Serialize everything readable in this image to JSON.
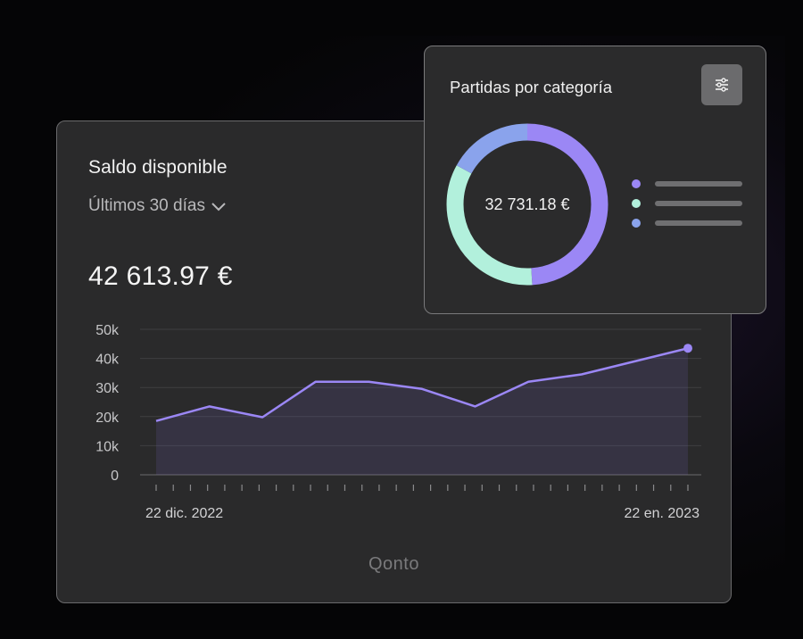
{
  "balance_card": {
    "title": "Saldo disponible",
    "period_label": "Últimos 30 días",
    "amount": "42 613.97 €",
    "brand": "Qonto"
  },
  "category_card": {
    "title": "Partidas por categoría",
    "total": "32 731.18 €",
    "filter_icon": "sliders-icon"
  },
  "colors": {
    "line": "#9b87f5",
    "segment_purple": "#9b87f5",
    "segment_mint": "#b2f0dc",
    "segment_blue": "#8aa3ec"
  },
  "chart_data": [
    {
      "type": "area",
      "y_ticks": [
        "50k",
        "40k",
        "30k",
        "20k",
        "10k",
        "0"
      ],
      "x_labels": [
        "22 dic. 2022",
        "22 en. 2023"
      ],
      "ylim": [
        0,
        50000
      ],
      "x": [
        0,
        1,
        2,
        3,
        4,
        5,
        6,
        7,
        8,
        9,
        10
      ],
      "values": [
        18500,
        23500,
        19800,
        32000,
        32000,
        29500,
        23500,
        32000,
        34500,
        39000,
        43500
      ],
      "grid": true,
      "x_tick_count": 32
    },
    {
      "type": "pie",
      "donut": true,
      "slices": [
        {
          "color": "#9b87f5",
          "share": 0.49
        },
        {
          "color": "#b2f0dc",
          "share": 0.34
        },
        {
          "color": "#8aa3ec",
          "share": 0.17
        }
      ]
    }
  ]
}
